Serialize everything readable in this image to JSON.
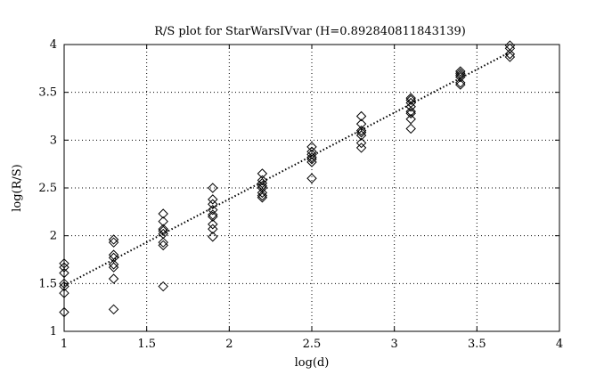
{
  "chart_data": {
    "type": "scatter",
    "title": "R/S plot for StarWarsIVvar (H=0.892840811843139)",
    "xlabel": "log(d)",
    "ylabel": "log(R/S)",
    "xlim": [
      1,
      4
    ],
    "ylim": [
      1,
      4
    ],
    "xticks": [
      1,
      1.5,
      2,
      2.5,
      3,
      3.5,
      4
    ],
    "yticks": [
      1,
      1.5,
      2,
      2.5,
      3,
      3.5,
      4
    ],
    "xtick_labels": [
      "1",
      "1.5",
      "2",
      "2.5",
      "3",
      "3.5",
      "4"
    ],
    "ytick_labels": [
      "1",
      "1.5",
      "2",
      "2.5",
      "3",
      "3.5",
      "4"
    ],
    "grid": true,
    "marker": "diamond",
    "fit_line": {
      "style": "dotted",
      "x": [
        1,
        3.7
      ],
      "y": [
        1.48,
        3.92
      ]
    },
    "series": [
      {
        "x": [
          1,
          1,
          1,
          1,
          1,
          1,
          1,
          1.3,
          1.3,
          1.3,
          1.3,
          1.3,
          1.3,
          1.3,
          1.3,
          1.6,
          1.6,
          1.6,
          1.6,
          1.6,
          1.6,
          1.6,
          1.6,
          1.9,
          1.9,
          1.9,
          1.9,
          1.9,
          1.9,
          1.9,
          1.9,
          1.9,
          2.2,
          2.2,
          2.2,
          2.2,
          2.2,
          2.2,
          2.2,
          2.2,
          2.5,
          2.5,
          2.5,
          2.5,
          2.5,
          2.5,
          2.5,
          2.8,
          2.8,
          2.8,
          2.8,
          2.8,
          2.8,
          2.8,
          3.1,
          3.1,
          3.1,
          3.1,
          3.1,
          3.1,
          3.1,
          3.1,
          3.4,
          3.4,
          3.4,
          3.4,
          3.4,
          3.4,
          3.7,
          3.7,
          3.7,
          3.7
        ],
        "y": [
          1.71,
          1.67,
          1.61,
          1.5,
          1.47,
          1.4,
          1.2,
          1.96,
          1.93,
          1.8,
          1.77,
          1.67,
          1.55,
          1.7,
          1.23,
          2.23,
          2.15,
          2.07,
          2.05,
          2.02,
          1.93,
          1.9,
          1.47,
          2.5,
          2.38,
          2.33,
          2.27,
          2.22,
          2.2,
          2.12,
          2.07,
          1.99,
          2.65,
          2.58,
          2.55,
          2.52,
          2.5,
          2.45,
          2.42,
          2.4,
          2.93,
          2.88,
          2.85,
          2.82,
          2.8,
          2.77,
          2.6,
          3.25,
          3.17,
          3.1,
          3.08,
          3.05,
          2.97,
          2.92,
          3.44,
          3.42,
          3.39,
          3.35,
          3.3,
          3.28,
          3.22,
          3.12,
          3.72,
          3.7,
          3.68,
          3.66,
          3.6,
          3.58,
          3.99,
          3.96,
          3.9,
          3.87
        ]
      }
    ]
  }
}
